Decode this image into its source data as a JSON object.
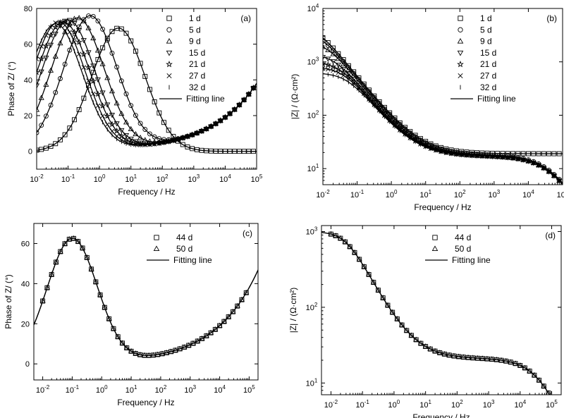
{
  "chart_data": [
    {
      "id": "a",
      "type": "scatter",
      "panel_label": "(a)",
      "xlabel": "Frequency / Hz",
      "ylabel": "Phase of Z/ (°)",
      "x_scale": "log",
      "y_scale": "linear",
      "xlim": [
        0.01,
        100000
      ],
      "ylim": [
        -10,
        80
      ],
      "xticks": [
        0.01,
        0.1,
        1,
        10,
        100,
        1000,
        10000,
        100000
      ],
      "yticks": [
        0,
        20,
        40,
        60,
        80
      ],
      "legend_position": "top-right",
      "fitting_label": "Fitting line",
      "series": [
        {
          "name": "1 d",
          "marker": "square",
          "peak": {
            "x": 4,
            "y": 69
          }
        },
        {
          "name": "5 d",
          "marker": "circle",
          "peak": {
            "x": 0.5,
            "y": 75
          }
        },
        {
          "name": "9 d",
          "marker": "triangle-up",
          "peak": {
            "x": 0.2,
            "y": 74
          }
        },
        {
          "name": "15 d",
          "marker": "triangle-down",
          "peak": {
            "x": 0.1,
            "y": 73
          }
        },
        {
          "name": "21 d",
          "marker": "star",
          "peak": {
            "x": 0.07,
            "y": 72
          }
        },
        {
          "name": "27 d",
          "marker": "cross",
          "peak": {
            "x": 0.05,
            "y": 72
          }
        },
        {
          "name": "32 d",
          "marker": "bar",
          "peak": {
            "x": 0.04,
            "y": 71
          }
        }
      ]
    },
    {
      "id": "b",
      "type": "scatter",
      "panel_label": "(b)",
      "xlabel": "Frequency / Hz",
      "ylabel": "|Z| / (Ω·cm²)",
      "x_scale": "log",
      "y_scale": "log",
      "xlim": [
        0.01,
        100000
      ],
      "ylim": [
        5,
        10000
      ],
      "xticks": [
        0.01,
        0.1,
        1,
        10,
        100,
        1000,
        10000,
        100000
      ],
      "yticks": [
        10,
        100,
        1000,
        10000
      ],
      "legend_position": "top-right",
      "fitting_label": "Fitting line",
      "series": [
        {
          "name": "1 d",
          "marker": "square",
          "z_low_freq": 5200,
          "z_plateau": 19
        },
        {
          "name": "5 d",
          "marker": "circle",
          "z_low_freq": 3800,
          "z_plateau": 18
        },
        {
          "name": "9 d",
          "marker": "triangle-up",
          "z_low_freq": 2500,
          "z_plateau": 17
        },
        {
          "name": "15 d",
          "marker": "triangle-down",
          "z_low_freq": 1400,
          "z_plateau": 17
        },
        {
          "name": "21 d",
          "marker": "star",
          "z_low_freq": 1000,
          "z_plateau": 17
        },
        {
          "name": "27 d",
          "marker": "cross",
          "z_low_freq": 800,
          "z_plateau": 17
        },
        {
          "name": "32 d",
          "marker": "bar",
          "z_low_freq": 620,
          "z_plateau": 17
        }
      ]
    },
    {
      "id": "c",
      "type": "scatter",
      "panel_label": "(c)",
      "xlabel": "Frequency / Hz",
      "ylabel": "Phase of Z/ (°)",
      "x_scale": "log",
      "y_scale": "linear",
      "xlim": [
        0.005,
        200000
      ],
      "ylim": [
        -8,
        70
      ],
      "xticks": [
        0.01,
        0.1,
        1,
        10,
        100,
        1000,
        10000,
        100000
      ],
      "yticks": [
        0,
        20,
        40,
        60
      ],
      "legend_position": "top-center",
      "fitting_label": "Fitting line",
      "series": [
        {
          "name": "44 d",
          "marker": "square",
          "peak": {
            "x": 0.1,
            "y": 62
          }
        },
        {
          "name": "50 d",
          "marker": "triangle-up",
          "peak": {
            "x": 0.1,
            "y": 62
          }
        }
      ]
    },
    {
      "id": "d",
      "type": "scatter",
      "panel_label": "(d)",
      "xlabel": "Frequency / Hz",
      "ylabel": "|Z| / (Ω·cm²)",
      "x_scale": "log",
      "y_scale": "log",
      "xlim": [
        0.005,
        200000
      ],
      "ylim": [
        7,
        1200
      ],
      "xticks": [
        0.01,
        0.1,
        1,
        10,
        100,
        1000,
        10000,
        100000
      ],
      "yticks": [
        10,
        100,
        1000
      ],
      "legend_position": "top-center",
      "fitting_label": "Fitting line",
      "series": [
        {
          "name": "44 d",
          "marker": "square",
          "z_low_freq": 1000,
          "z_plateau": 21
        },
        {
          "name": "50 d",
          "marker": "triangle-up",
          "z_low_freq": 1000,
          "z_plateau": 21
        }
      ]
    }
  ]
}
